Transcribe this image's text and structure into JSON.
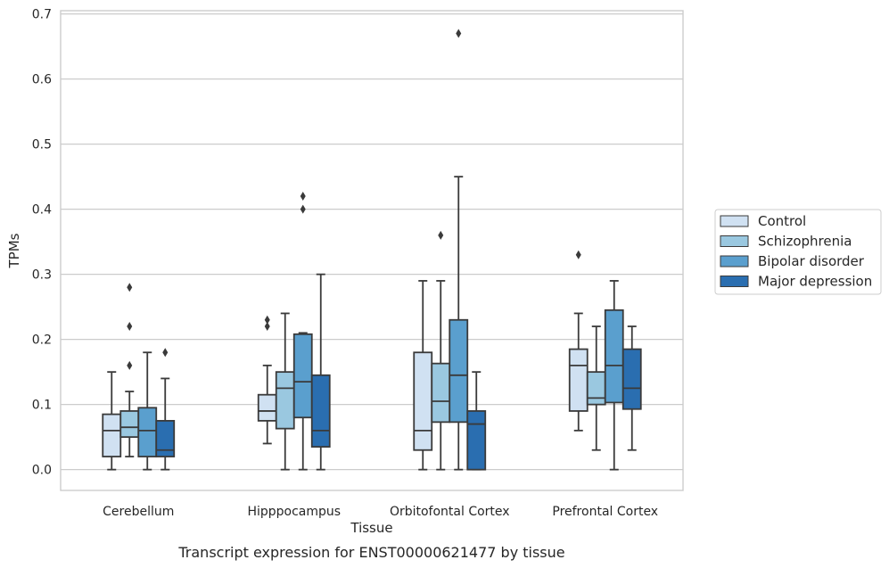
{
  "chart_data": {
    "type": "box",
    "title": "",
    "caption": "Transcript expression for ENST00000621477 by tissue",
    "xlabel": "Tissue",
    "ylabel": "TPMs",
    "ylim": [
      -0.032,
      0.705
    ],
    "yticks": [
      0.0,
      0.1,
      0.2,
      0.3,
      0.4,
      0.5,
      0.6,
      0.7
    ],
    "ytick_labels": [
      "0.0",
      "0.1",
      "0.2",
      "0.3",
      "0.4",
      "0.5",
      "0.6",
      "0.7"
    ],
    "grid": true,
    "legend_position": "right",
    "categories": [
      "Cerebellum",
      "Hipppocampus",
      "Orbitofontal Cortex",
      "Prefrontal Cortex"
    ],
    "series": [
      {
        "name": "Control",
        "color": "#d0e1f2",
        "boxes": [
          {
            "whisker_low": 0.0,
            "q1": 0.02,
            "median": 0.06,
            "q3": 0.085,
            "whisker_high": 0.15,
            "outliers": []
          },
          {
            "whisker_low": 0.04,
            "q1": 0.075,
            "median": 0.09,
            "q3": 0.115,
            "whisker_high": 0.16,
            "outliers": [
              0.22,
              0.23
            ]
          },
          {
            "whisker_low": 0.0,
            "q1": 0.03,
            "median": 0.06,
            "q3": 0.18,
            "whisker_high": 0.29,
            "outliers": []
          },
          {
            "whisker_low": 0.06,
            "q1": 0.09,
            "median": 0.16,
            "q3": 0.185,
            "whisker_high": 0.24,
            "outliers": [
              0.33
            ]
          }
        ]
      },
      {
        "name": "Schizophrenia",
        "color": "#9ac8e0",
        "boxes": [
          {
            "whisker_low": 0.02,
            "q1": 0.05,
            "median": 0.065,
            "q3": 0.09,
            "whisker_high": 0.12,
            "outliers": [
              0.16,
              0.22,
              0.28
            ]
          },
          {
            "whisker_low": 0.0,
            "q1": 0.063,
            "median": 0.125,
            "q3": 0.15,
            "whisker_high": 0.24,
            "outliers": []
          },
          {
            "whisker_low": 0.0,
            "q1": 0.073,
            "median": 0.105,
            "q3": 0.163,
            "whisker_high": 0.29,
            "outliers": [
              0.36
            ]
          },
          {
            "whisker_low": 0.03,
            "q1": 0.1,
            "median": 0.11,
            "q3": 0.15,
            "whisker_high": 0.22,
            "outliers": []
          }
        ]
      },
      {
        "name": "Bipolar disorder",
        "color": "#5a9fce",
        "boxes": [
          {
            "whisker_low": 0.0,
            "q1": 0.02,
            "median": 0.06,
            "q3": 0.095,
            "whisker_high": 0.18,
            "outliers": []
          },
          {
            "whisker_low": 0.0,
            "q1": 0.08,
            "median": 0.135,
            "q3": 0.208,
            "whisker_high": 0.21,
            "outliers": [
              0.4,
              0.42
            ]
          },
          {
            "whisker_low": 0.0,
            "q1": 0.073,
            "median": 0.145,
            "q3": 0.23,
            "whisker_high": 0.45,
            "outliers": [
              0.67
            ]
          },
          {
            "whisker_low": 0.0,
            "q1": 0.103,
            "median": 0.16,
            "q3": 0.245,
            "whisker_high": 0.29,
            "outliers": []
          }
        ]
      },
      {
        "name": "Major depression",
        "color": "#2a6eb0",
        "boxes": [
          {
            "whisker_low": 0.0,
            "q1": 0.02,
            "median": 0.03,
            "q3": 0.075,
            "whisker_high": 0.14,
            "outliers": [
              0.18
            ]
          },
          {
            "whisker_low": 0.0,
            "q1": 0.035,
            "median": 0.06,
            "q3": 0.145,
            "whisker_high": 0.3,
            "outliers": []
          },
          {
            "whisker_low": 0.0,
            "q1": 0.0,
            "median": 0.07,
            "q3": 0.09,
            "whisker_high": 0.15,
            "outliers": []
          },
          {
            "whisker_low": 0.03,
            "q1": 0.093,
            "median": 0.125,
            "q3": 0.185,
            "whisker_high": 0.22,
            "outliers": []
          }
        ]
      }
    ]
  }
}
